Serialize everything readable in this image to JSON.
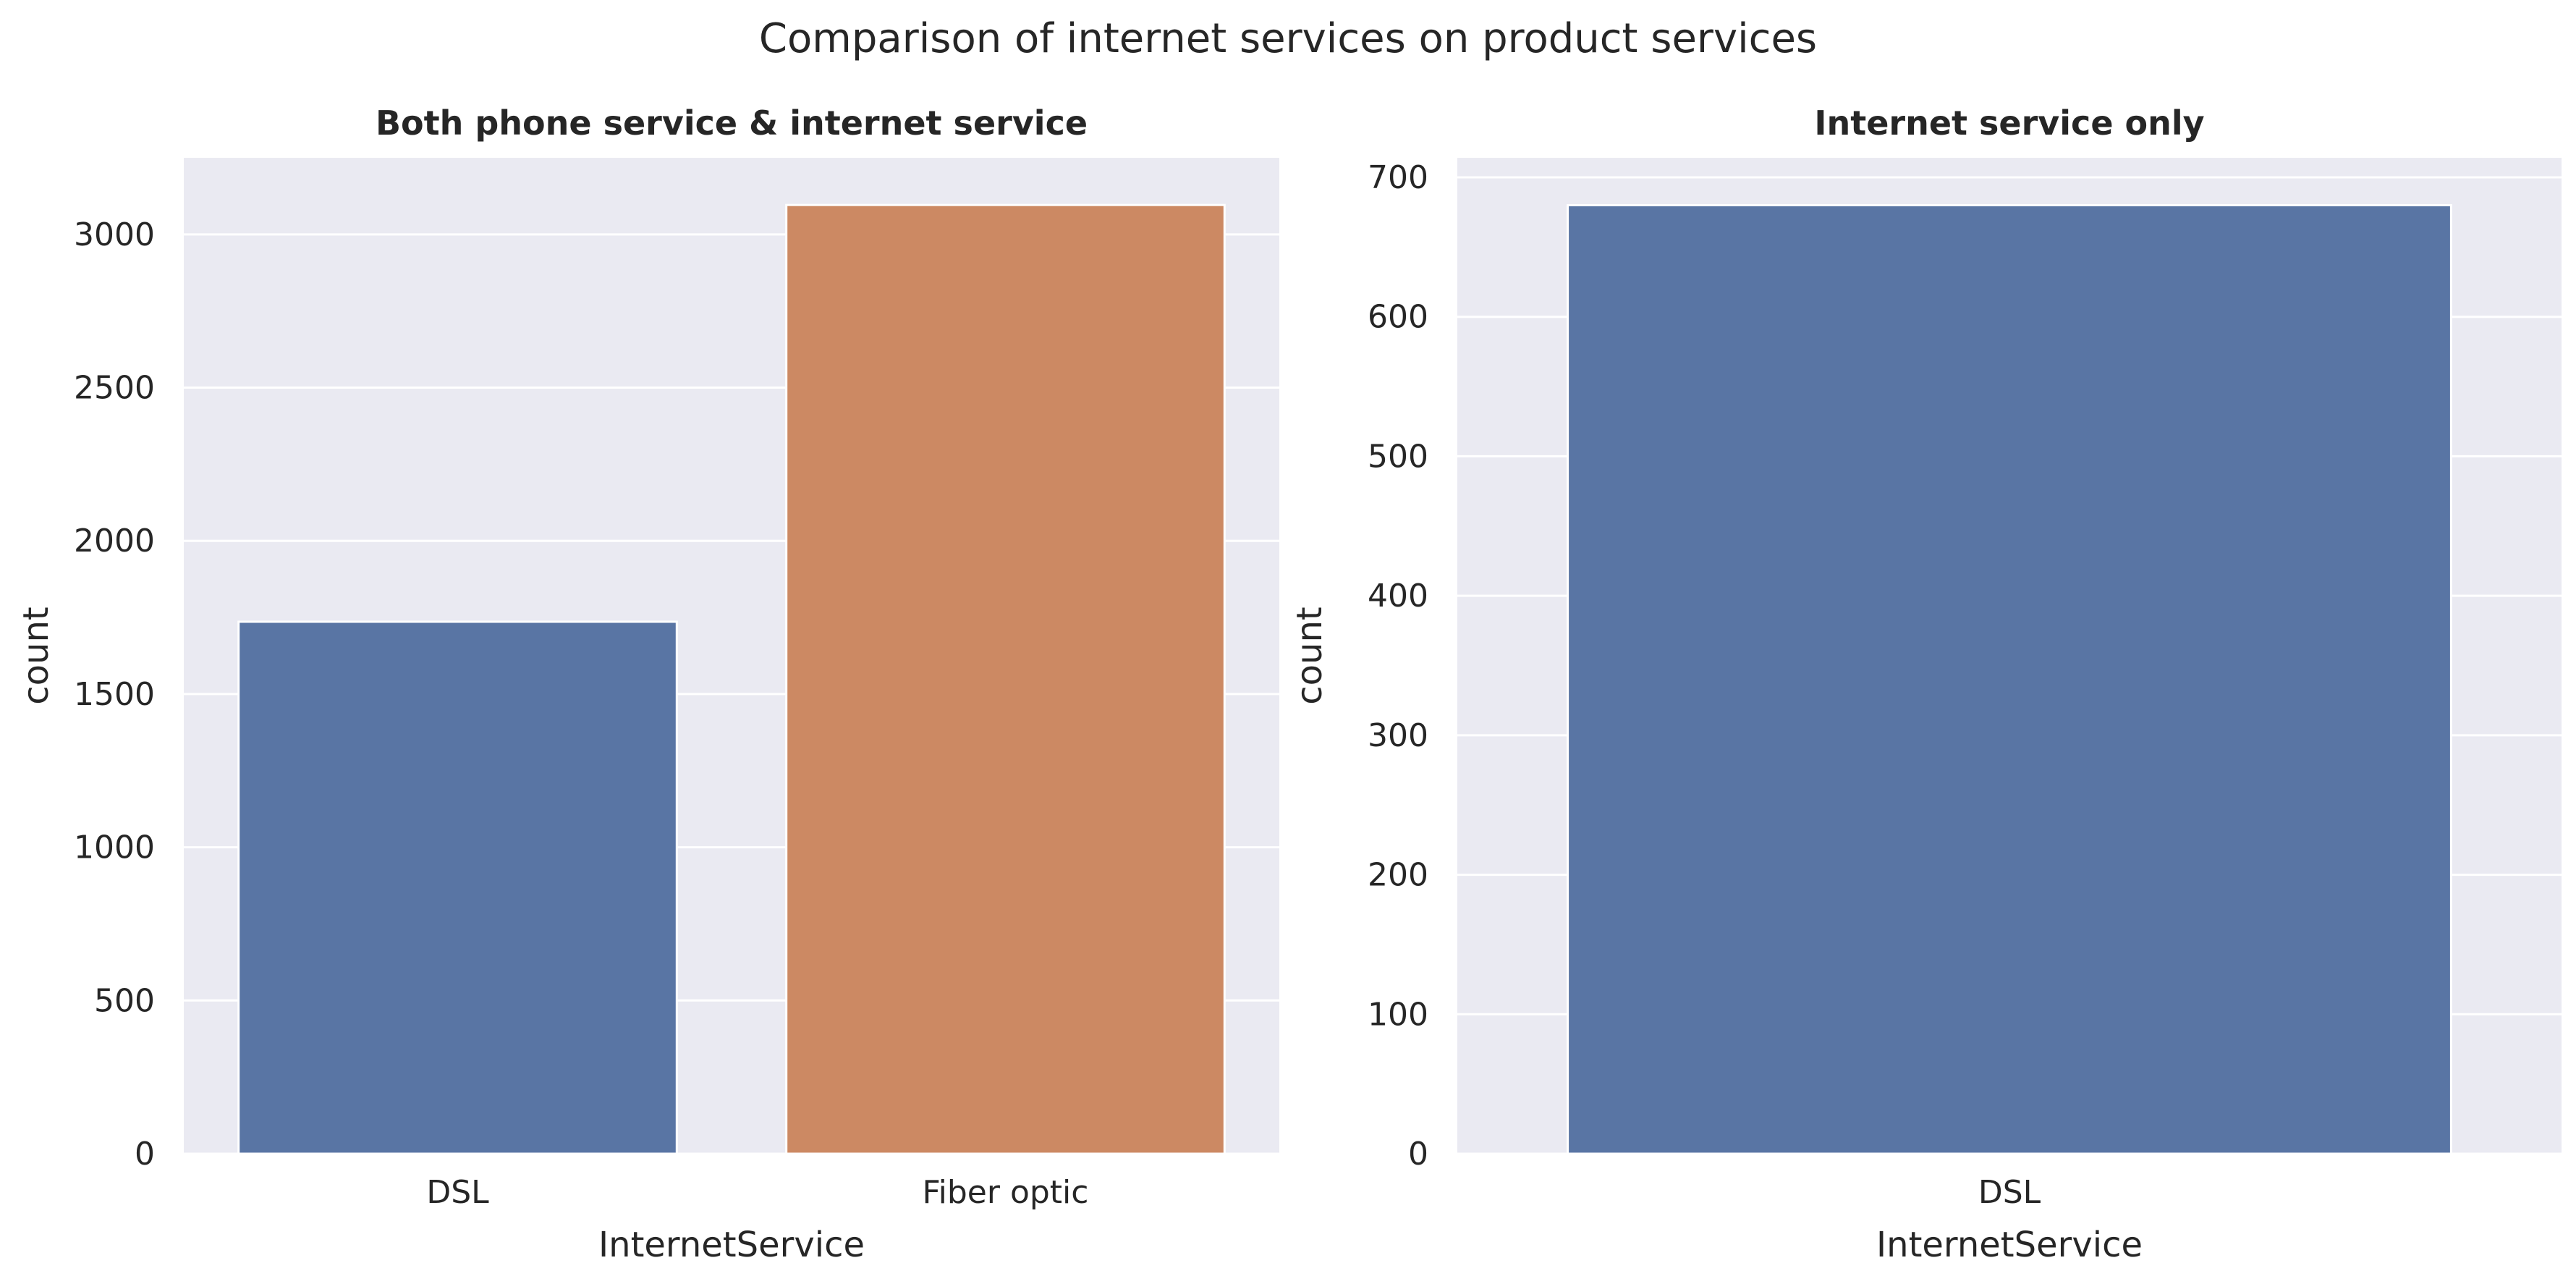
{
  "figure": {
    "suptitle": "Comparison of internet services on product services"
  },
  "colors": {
    "panel_bg": "#EAEAF2",
    "grid": "#FFFFFF",
    "text": "#262626",
    "blue": "#5975A4",
    "orange": "#CC8963"
  },
  "chart_data": [
    {
      "type": "bar",
      "title": "Both phone service & internet service",
      "xlabel": "InternetService",
      "ylabel": "count",
      "categories": [
        "DSL",
        "Fiber optic"
      ],
      "values": [
        1736,
        3096
      ],
      "colors": [
        "#5975A4",
        "#CC8963"
      ],
      "ylim": [
        0,
        3250
      ],
      "yticks": [
        0,
        500,
        1000,
        1500,
        2000,
        2500,
        3000
      ],
      "grid": true
    },
    {
      "type": "bar",
      "title": "Internet service only",
      "xlabel": "InternetService",
      "ylabel": "count",
      "categories": [
        "DSL"
      ],
      "values": [
        680
      ],
      "colors": [
        "#5975A4"
      ],
      "ylim": [
        0,
        714
      ],
      "yticks": [
        0,
        100,
        200,
        300,
        400,
        500,
        600,
        700
      ],
      "grid": true
    }
  ]
}
